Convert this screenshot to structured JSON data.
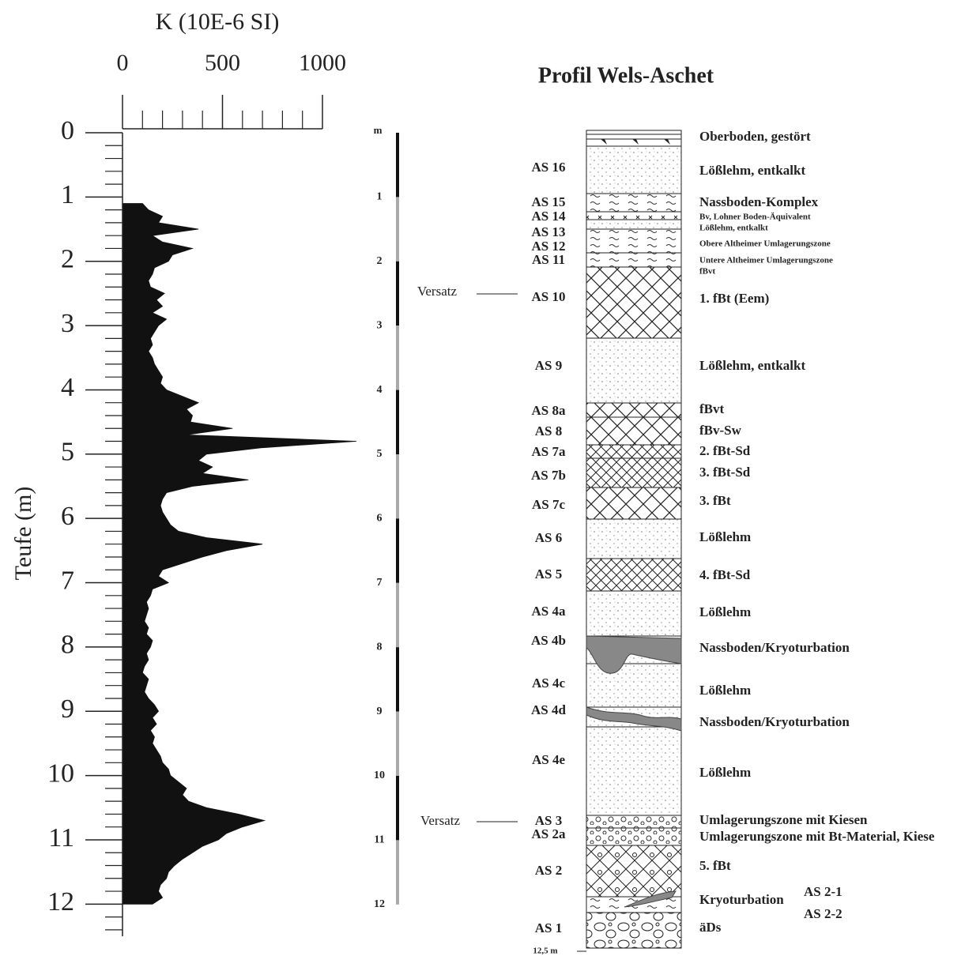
{
  "chart_data": {
    "type": "area",
    "orientation": "vertical",
    "title": "K (10E-6 SI)",
    "y_label": "Teufe (m)",
    "color": "#111111",
    "xlim": [
      0,
      1000
    ],
    "xticks": [
      0,
      500,
      1000
    ],
    "xticks_minor": [
      100,
      200,
      300,
      400,
      600,
      700,
      800,
      900
    ],
    "ylim": [
      0,
      12.5
    ],
    "yticks": [
      0,
      1,
      2,
      3,
      4,
      5,
      6,
      7,
      8,
      9,
      10,
      11,
      12
    ],
    "yticks_minor": [
      0.2,
      0.4,
      0.6,
      0.8,
      1.2,
      1.4,
      1.6,
      1.8,
      2.2,
      2.4,
      2.6,
      2.8,
      3.2,
      3.4,
      3.6,
      3.8,
      4.2,
      4.4,
      4.6,
      4.8,
      5.2,
      5.4,
      5.6,
      5.8,
      6.2,
      6.4,
      6.6,
      6.8,
      7.2,
      7.4,
      7.6,
      7.8,
      8.2,
      8.4,
      8.6,
      8.8,
      9.2,
      9.4,
      9.6,
      9.8,
      10.2,
      10.4,
      10.6,
      10.8,
      11.2,
      11.4,
      11.6,
      11.8,
      12.2,
      12.4
    ],
    "depth": [
      1.1,
      1.2,
      1.3,
      1.4,
      1.5,
      1.6,
      1.7,
      1.8,
      1.9,
      2.0,
      2.1,
      2.2,
      2.3,
      2.4,
      2.5,
      2.6,
      2.7,
      2.8,
      2.9,
      3.0,
      3.1,
      3.2,
      3.3,
      3.4,
      3.5,
      3.6,
      3.7,
      3.8,
      3.9,
      4.0,
      4.1,
      4.2,
      4.3,
      4.4,
      4.5,
      4.6,
      4.7,
      4.8,
      4.9,
      5.0,
      5.1,
      5.2,
      5.3,
      5.4,
      5.5,
      5.6,
      5.7,
      5.8,
      5.9,
      6.0,
      6.1,
      6.2,
      6.3,
      6.4,
      6.5,
      6.6,
      6.7,
      6.8,
      6.9,
      7.0,
      7.1,
      7.2,
      7.3,
      7.4,
      7.5,
      7.6,
      7.7,
      7.8,
      7.9,
      8.0,
      8.1,
      8.2,
      8.3,
      8.4,
      8.5,
      8.6,
      8.7,
      8.8,
      8.9,
      9.0,
      9.1,
      9.2,
      9.3,
      9.4,
      9.5,
      9.6,
      9.7,
      9.8,
      9.9,
      10.0,
      10.1,
      10.2,
      10.3,
      10.4,
      10.5,
      10.6,
      10.7,
      10.8,
      10.9,
      11.0,
      11.1,
      11.2,
      11.3,
      11.4,
      11.5,
      11.6,
      11.7,
      11.8,
      11.9,
      12.0
    ],
    "values": [
      100,
      130,
      200,
      180,
      380,
      150,
      200,
      350,
      250,
      230,
      160,
      150,
      130,
      140,
      210,
      170,
      200,
      150,
      220,
      180,
      160,
      140,
      150,
      130,
      150,
      160,
      180,
      200,
      190,
      220,
      300,
      380,
      320,
      350,
      340,
      550,
      320,
      1170,
      700,
      420,
      380,
      450,
      400,
      630,
      350,
      220,
      200,
      190,
      200,
      220,
      240,
      280,
      420,
      700,
      520,
      400,
      300,
      200,
      180,
      230,
      150,
      140,
      120,
      130,
      120,
      110,
      130,
      120,
      150,
      140,
      120,
      130,
      110,
      100,
      130,
      120,
      110,
      130,
      160,
      180,
      150,
      170,
      140,
      160,
      150,
      170,
      190,
      200,
      230,
      240,
      280,
      320,
      300,
      330,
      420,
      580,
      710,
      600,
      520,
      480,
      400,
      350,
      300,
      260,
      230,
      220,
      190,
      180,
      200,
      150
    ]
  },
  "profile": {
    "title": "Profil Wels-Aschet",
    "scale": {
      "unit": "m",
      "ticks": [
        1,
        2,
        3,
        4,
        5,
        6,
        7,
        8,
        9,
        10,
        11,
        12
      ],
      "end": "12,5 m"
    },
    "offsets": [
      "Versatz",
      "Versatz"
    ],
    "units": [
      "AS 16",
      "AS 15",
      "AS 14",
      "AS 13",
      "AS 12",
      "AS 11",
      "AS 10",
      "AS 9",
      "AS 8a",
      "AS 8",
      "AS 7a",
      "AS 7b",
      "AS 7c",
      "AS 6",
      "AS 5",
      "AS 4a",
      "AS 4b",
      "AS 4c",
      "AS 4d",
      "AS 4e",
      "AS 3",
      "AS 2a",
      "AS 2",
      "AS 1"
    ],
    "descriptions": [
      "Oberboden, gestört",
      "Lößlehm, entkalkt",
      "Nassboden-Komplex",
      "Bv, Lohner Boden-Äquivalent",
      "Lößlehm, entkalkt",
      "Obere Altheimer Umlagerungszone",
      "Untere Altheimer Umlagerungszone",
      "fBvt",
      "1. fBt (Eem)",
      "Lößlehm, entkalkt",
      "fBvt",
      "fBv-Sw",
      "2. fBt-Sd",
      "3. fBt-Sd",
      "3. fBt",
      "Lößlehm",
      "4. fBt-Sd",
      "Lößlehm",
      "Nassboden/Kryoturbation",
      "Lößlehm",
      "Nassboden/Kryoturbation",
      "Lößlehm",
      "Umlagerungszone mit Kiesen",
      "Umlagerungszone mit Bt-Material, Kiese",
      "5. fBt",
      "Kryoturbation",
      "äDs"
    ],
    "subunits": [
      "AS 2-1",
      "AS 2-2"
    ]
  }
}
